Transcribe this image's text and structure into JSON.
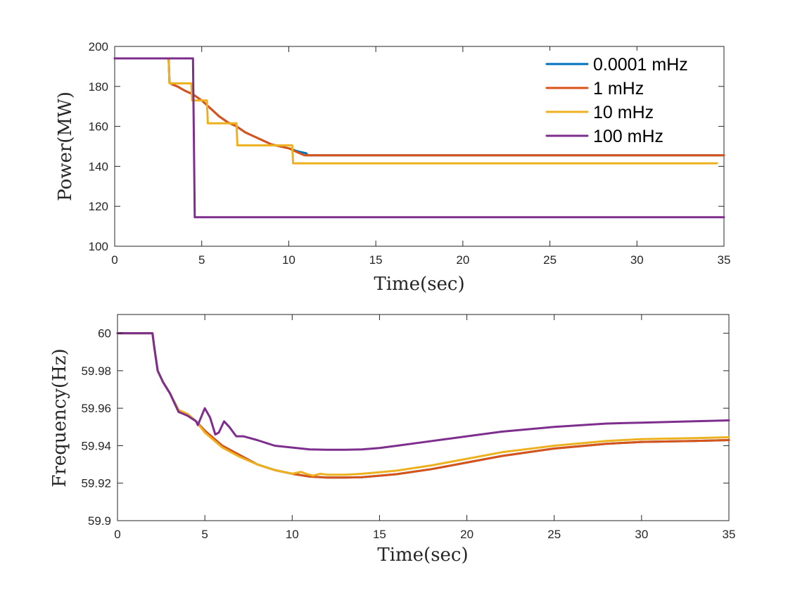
{
  "chart_data": [
    {
      "type": "line",
      "title": "",
      "xlabel": "Time(sec)",
      "ylabel": "Power(MW)",
      "xlim": [
        0,
        35
      ],
      "ylim": [
        100,
        200
      ],
      "xticks": [
        0,
        5,
        10,
        15,
        20,
        25,
        30,
        35
      ],
      "yticks": [
        100,
        120,
        140,
        160,
        180,
        200
      ],
      "grid": false,
      "legend_position": "top-right",
      "series": [
        {
          "name": "0.0001 mHz",
          "color": "#0072BD",
          "x": [
            0,
            3.1,
            3.15,
            3.3,
            3.6,
            4.0,
            4.5,
            5.0,
            5.5,
            6.0,
            6.5,
            7.0,
            7.5,
            8.0,
            8.5,
            9.0,
            9.5,
            10.0,
            10.5,
            11.0,
            11.1,
            35
          ],
          "y": [
            194,
            194,
            182,
            181,
            180,
            178,
            176,
            173,
            169,
            165,
            162,
            160,
            157,
            155,
            153,
            151,
            150,
            149,
            147.5,
            146.5,
            145.5,
            145.5
          ]
        },
        {
          "name": "1 mHz",
          "color": "#D95319",
          "x": [
            0,
            3.1,
            3.15,
            3.3,
            3.6,
            4.0,
            4.5,
            5.0,
            5.5,
            6.0,
            6.5,
            7.0,
            7.5,
            8.0,
            8.5,
            9.0,
            9.5,
            10.0,
            10.5,
            10.9,
            35
          ],
          "y": [
            194,
            194,
            182,
            181,
            180,
            178,
            176,
            173,
            169,
            165,
            162,
            160,
            157,
            155,
            153,
            151,
            150,
            149,
            147,
            145.5,
            145.5
          ]
        },
        {
          "name": "10 mHz",
          "color": "#EDB120",
          "x": [
            0,
            3.1,
            3.15,
            4.4,
            4.45,
            5.3,
            5.35,
            7.0,
            7.05,
            10.2,
            10.25,
            34.6
          ],
          "y": [
            194,
            194,
            181.5,
            181.5,
            173,
            173,
            161.5,
            161.5,
            150.5,
            150.5,
            141.5,
            141.5
          ]
        },
        {
          "name": "100 mHz",
          "color": "#7E2F8E",
          "x": [
            0,
            4.5,
            4.6,
            35
          ],
          "y": [
            194,
            194,
            114.5,
            114.5
          ]
        }
      ]
    },
    {
      "type": "line",
      "title": "",
      "xlabel": "Time(sec)",
      "ylabel": "Frequency(Hz)",
      "xlim": [
        0,
        35
      ],
      "ylim": [
        59.9,
        60.01
      ],
      "xticks": [
        0,
        5,
        10,
        15,
        20,
        25,
        30,
        35
      ],
      "yticks": [
        59.9,
        59.92,
        59.94,
        59.96,
        59.98,
        60
      ],
      "ytick_labels": [
        "59.9",
        "59.92",
        "59.94",
        "59.96",
        "59.98",
        "60"
      ],
      "grid": false,
      "series": [
        {
          "name": "0.0001 mHz",
          "color": "#0072BD",
          "x": [
            0,
            2.0,
            2.1,
            2.3,
            2.6,
            3.0,
            3.5,
            4.0,
            4.5,
            5.0,
            6.0,
            7.0,
            8.0,
            9.0,
            10.0,
            11.0,
            12.0,
            13.0,
            14.0,
            15.0,
            16.0,
            18.0,
            20.0,
            22.0,
            25.0,
            28.0,
            30.0,
            33.0,
            35.0
          ],
          "y": [
            60.0,
            60.0,
            59.993,
            59.98,
            59.974,
            59.968,
            59.958,
            59.957,
            59.953,
            59.948,
            59.94,
            59.935,
            59.93,
            59.927,
            59.925,
            59.9235,
            59.923,
            59.923,
            59.9232,
            59.924,
            59.9248,
            59.9275,
            59.931,
            59.9345,
            59.9385,
            59.941,
            59.942,
            59.9425,
            59.943
          ]
        },
        {
          "name": "1 mHz",
          "color": "#D95319",
          "x": [
            0,
            2.0,
            2.1,
            2.3,
            2.6,
            3.0,
            3.5,
            4.0,
            4.5,
            5.0,
            6.0,
            7.0,
            8.0,
            9.0,
            10.0,
            11.0,
            12.0,
            13.0,
            14.0,
            15.0,
            16.0,
            18.0,
            20.0,
            22.0,
            25.0,
            28.0,
            30.0,
            33.0,
            35.0
          ],
          "y": [
            60.0,
            60.0,
            59.993,
            59.98,
            59.974,
            59.968,
            59.958,
            59.957,
            59.953,
            59.948,
            59.94,
            59.935,
            59.93,
            59.927,
            59.925,
            59.9235,
            59.923,
            59.923,
            59.9232,
            59.924,
            59.9248,
            59.9275,
            59.931,
            59.9345,
            59.9385,
            59.941,
            59.942,
            59.9425,
            59.943
          ]
        },
        {
          "name": "10 mHz",
          "color": "#EDB120",
          "x": [
            0,
            2.0,
            2.1,
            2.3,
            2.6,
            3.0,
            3.5,
            4.0,
            4.5,
            5.0,
            6.0,
            7.0,
            8.0,
            9.0,
            10.0,
            10.5,
            10.8,
            11.2,
            11.6,
            12.0,
            13.0,
            14.0,
            15.0,
            16.0,
            18.0,
            20.0,
            22.0,
            25.0,
            28.0,
            30.0,
            33.0,
            35.0
          ],
          "y": [
            60.0,
            60.0,
            59.993,
            59.98,
            59.974,
            59.968,
            59.959,
            59.957,
            59.953,
            59.947,
            59.939,
            59.934,
            59.93,
            59.927,
            59.925,
            59.926,
            59.925,
            59.924,
            59.925,
            59.9245,
            59.9245,
            59.925,
            59.9258,
            59.9267,
            59.9295,
            59.933,
            59.9365,
            59.94,
            59.9425,
            59.9435,
            59.944,
            59.9445
          ]
        },
        {
          "name": "100 mHz",
          "color": "#7E2F8E",
          "x": [
            0,
            2.0,
            2.1,
            2.3,
            2.6,
            3.0,
            3.5,
            4.0,
            4.5,
            4.6,
            5.0,
            5.3,
            5.6,
            5.8,
            6.1,
            6.4,
            6.8,
            7.2,
            8.0,
            9.0,
            10.0,
            11.0,
            12.0,
            13.0,
            14.0,
            15.0,
            16.0,
            18.0,
            20.0,
            22.0,
            25.0,
            28.0,
            30.0,
            33.0,
            35.0
          ],
          "y": [
            60.0,
            60.0,
            59.993,
            59.98,
            59.974,
            59.968,
            59.958,
            59.956,
            59.953,
            59.951,
            59.96,
            59.955,
            59.946,
            59.947,
            59.953,
            59.95,
            59.945,
            59.945,
            59.943,
            59.94,
            59.939,
            59.938,
            59.9378,
            59.9378,
            59.938,
            59.9388,
            59.94,
            59.9425,
            59.945,
            59.9475,
            59.95,
            59.9518,
            59.9523,
            59.953,
            59.9535
          ]
        }
      ]
    }
  ],
  "legend": {
    "entries": [
      "0.0001 mHz",
      "1 mHz",
      "10 mHz",
      "100 mHz"
    ],
    "colors": [
      "#0072BD",
      "#D95319",
      "#EDB120",
      "#7E2F8E"
    ]
  }
}
